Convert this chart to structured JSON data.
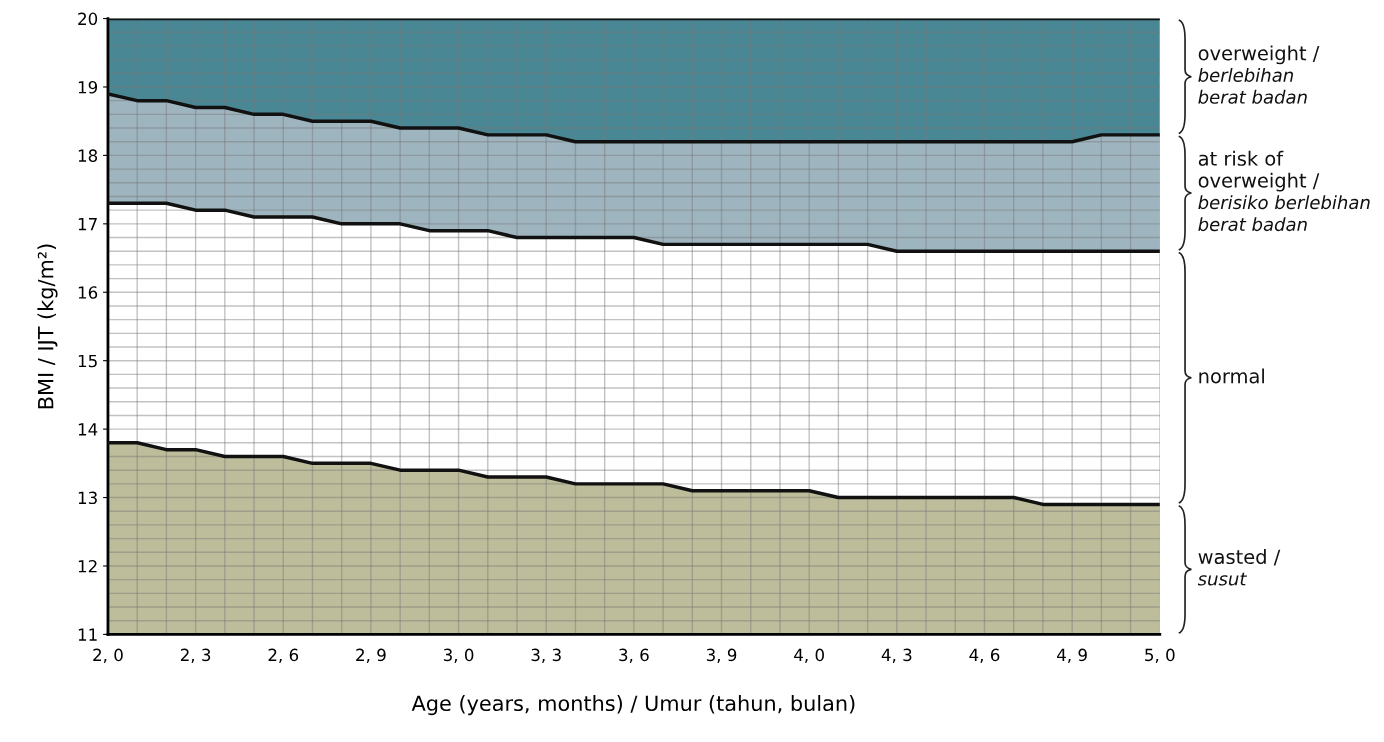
{
  "chart_data": {
    "type": "area",
    "xlabel": "Age (years, months) / Umur (tahun, bulan)",
    "ylabel": "BMI / IJT (kg/m²)",
    "categories": [
      "2, 0",
      null,
      null,
      "2, 3",
      null,
      null,
      "2, 6",
      null,
      null,
      "2, 9",
      null,
      null,
      "3, 0",
      null,
      null,
      "3, 3",
      null,
      null,
      "3, 6",
      null,
      null,
      "3, 9",
      null,
      null,
      "4, 0",
      null,
      null,
      "4, 3",
      null,
      null,
      "4, 6",
      null,
      null,
      "4, 9",
      null,
      null,
      "5, 0"
    ],
    "series": [
      {
        "name": "wasted /\nsusut",
        "color": "#bdbd9b",
        "values": [
          13.8,
          13.8,
          13.7,
          13.7,
          13.6,
          13.6,
          13.6,
          13.5,
          13.5,
          13.5,
          13.4,
          13.4,
          13.4,
          13.3,
          13.3,
          13.3,
          13.2,
          13.2,
          13.2,
          13.2,
          13.1,
          13.1,
          13.1,
          13.1,
          13.1,
          13.0,
          13.0,
          13.0,
          13.0,
          13.0,
          13.0,
          13.0,
          12.9,
          12.9,
          12.9,
          12.9,
          12.9
        ]
      },
      {
        "name": "normal",
        "color": "#ffffff",
        "values": [
          17.3,
          17.3,
          17.3,
          17.2,
          17.2,
          17.1,
          17.1,
          17.1,
          17.0,
          17.0,
          17.0,
          16.9,
          16.9,
          16.9,
          16.8,
          16.8,
          16.8,
          16.8,
          16.8,
          16.7,
          16.7,
          16.7,
          16.7,
          16.7,
          16.7,
          16.7,
          16.7,
          16.6,
          16.6,
          16.6,
          16.6,
          16.6,
          16.6,
          16.6,
          16.6,
          16.6,
          16.6
        ]
      },
      {
        "name": "at risk of\noverweight /\nberisiko berlebihan\nberat badan",
        "color": "#9eb5bf",
        "values": [
          18.9,
          18.8,
          18.8,
          18.7,
          18.7,
          18.6,
          18.6,
          18.5,
          18.5,
          18.5,
          18.4,
          18.4,
          18.4,
          18.3,
          18.3,
          18.3,
          18.2,
          18.2,
          18.2,
          18.2,
          18.2,
          18.2,
          18.2,
          18.2,
          18.2,
          18.2,
          18.2,
          18.2,
          18.2,
          18.2,
          18.2,
          18.2,
          18.2,
          18.2,
          18.3,
          18.3,
          18.3
        ]
      },
      {
        "name": "overweight /\nberlebihan\nberat badan",
        "color": "#4a8794",
        "values": [
          20,
          20,
          20,
          20,
          20,
          20,
          20,
          20,
          20,
          20,
          20,
          20,
          20,
          20,
          20,
          20,
          20,
          20,
          20,
          20,
          20,
          20,
          20,
          20,
          20,
          20,
          20,
          20,
          20,
          20,
          20,
          20,
          20,
          20,
          20,
          20,
          20
        ]
      }
    ],
    "ylim": [
      11,
      20
    ],
    "yticks": [
      11,
      12,
      13,
      14,
      15,
      16,
      17,
      18,
      19,
      20
    ],
    "grid": true,
    "legend": "right"
  }
}
